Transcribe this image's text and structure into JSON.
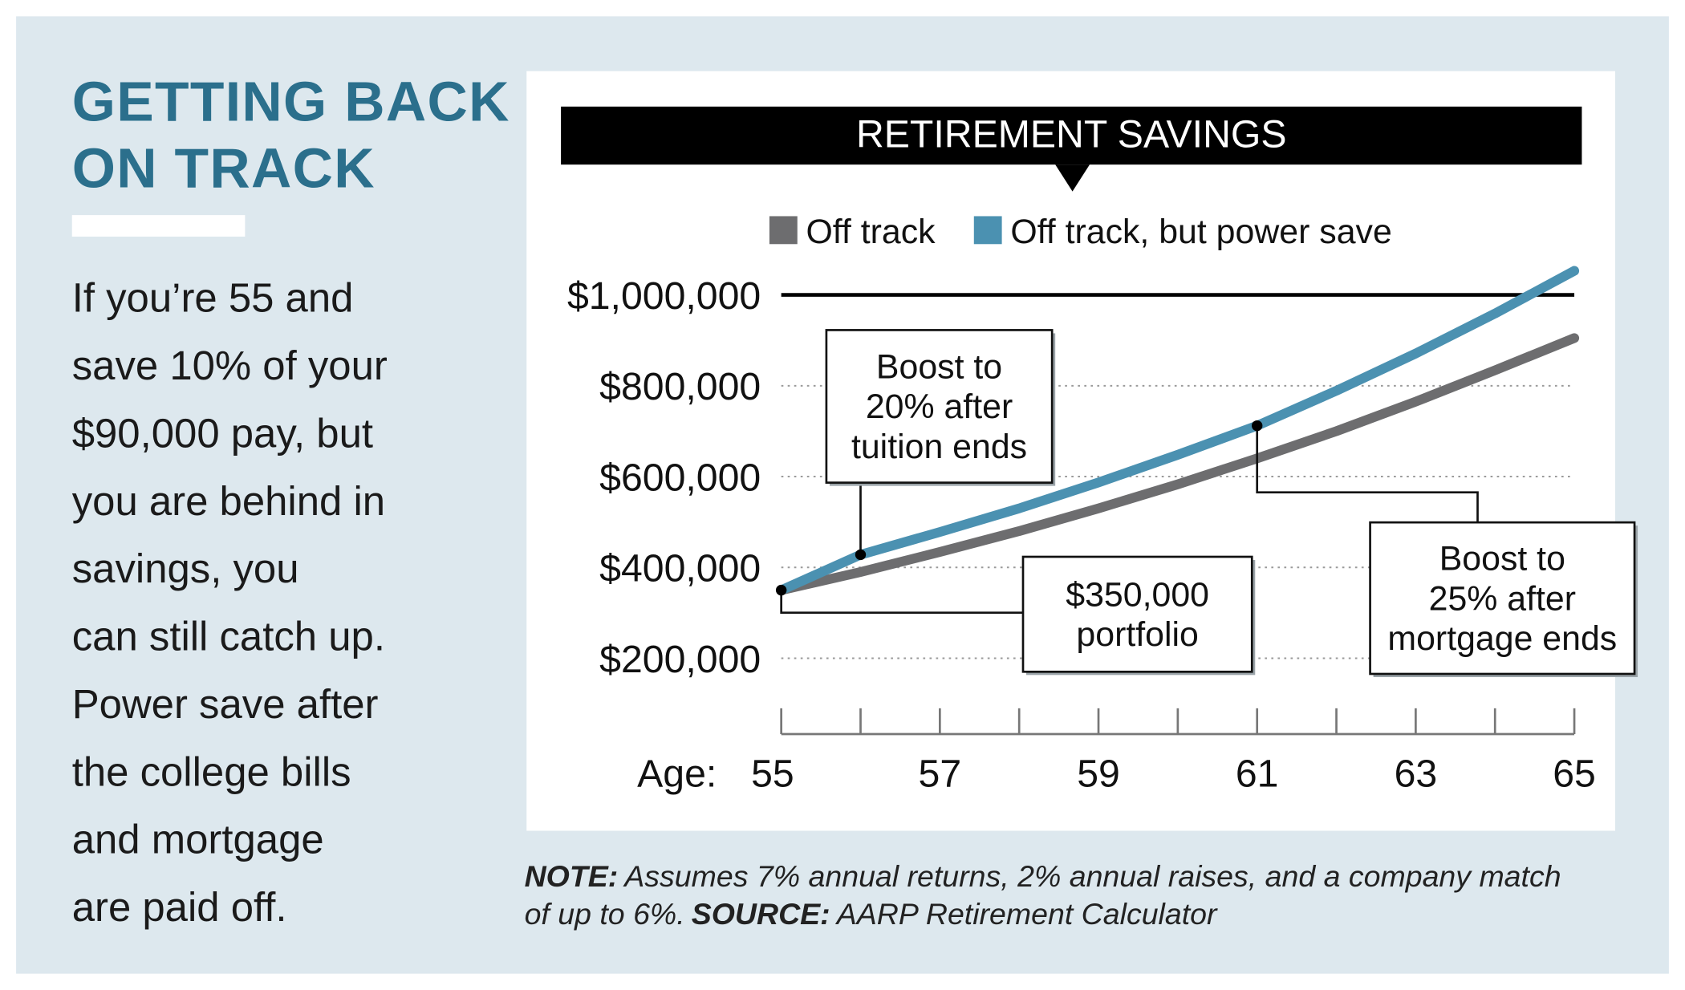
{
  "sidebar": {
    "title_lines": [
      "GETTING BACK",
      "ON TRACK"
    ],
    "body_lines": [
      "If you’re 55 and",
      "save 10% of your",
      "$90,000 pay, but",
      "you are behind in",
      "savings, you",
      "can still catch up.",
      "Power save after",
      "the college bills",
      "and mortgage",
      "are paid off."
    ]
  },
  "chart_data": {
    "type": "line",
    "title": "RETIREMENT SAVINGS",
    "x_label": "Age:",
    "x": [
      55,
      56,
      57,
      58,
      59,
      60,
      61,
      62,
      63,
      64,
      65
    ],
    "series": [
      {
        "name": "Off track",
        "color": "#6d6d6f",
        "values": [
          350000,
          390000,
          434000,
          480000,
          530000,
          583000,
          640000,
          700000,
          765000,
          834000,
          905000
        ]
      },
      {
        "name": "Off track, but power save",
        "color": "#4b91b1",
        "values": [
          350000,
          428000,
          478000,
          530000,
          587000,
          648000,
          712000,
          789000,
          871000,
          959000,
          1053000
        ]
      }
    ],
    "xlim": [
      55,
      65
    ],
    "xticks": [
      55,
      57,
      59,
      61,
      63,
      65
    ],
    "xminor_ticks": [
      56,
      58,
      60,
      62,
      64
    ],
    "ylim": [
      0,
      1100000
    ],
    "yticks": [
      {
        "value": 200000,
        "label": "$200,000"
      },
      {
        "value": 400000,
        "label": "$400,000"
      },
      {
        "value": 600000,
        "label": "$600,000"
      },
      {
        "value": 800000,
        "label": "$800,000"
      },
      {
        "value": 1000000,
        "label": "$1,000,000"
      }
    ],
    "reference_line": 1000000,
    "grid": true,
    "annotations": [
      {
        "lines": [
          "Boost to",
          "20% after",
          "tuition ends"
        ],
        "series": 1,
        "x": 56
      },
      {
        "lines": [
          "$350,000",
          "portfolio"
        ],
        "series": 1,
        "x": 55
      },
      {
        "lines": [
          "Boost to",
          "25% after",
          "mortgage ends"
        ],
        "series": 1,
        "x": 61
      }
    ],
    "note": {
      "label": "NOTE:",
      "lines": [
        "Assumes 7% annual returns, 2% annual raises, and a company match",
        "of up to 6%."
      ]
    },
    "source": {
      "label": "SOURCE:",
      "text": "AARP Retirement Calculator"
    }
  }
}
